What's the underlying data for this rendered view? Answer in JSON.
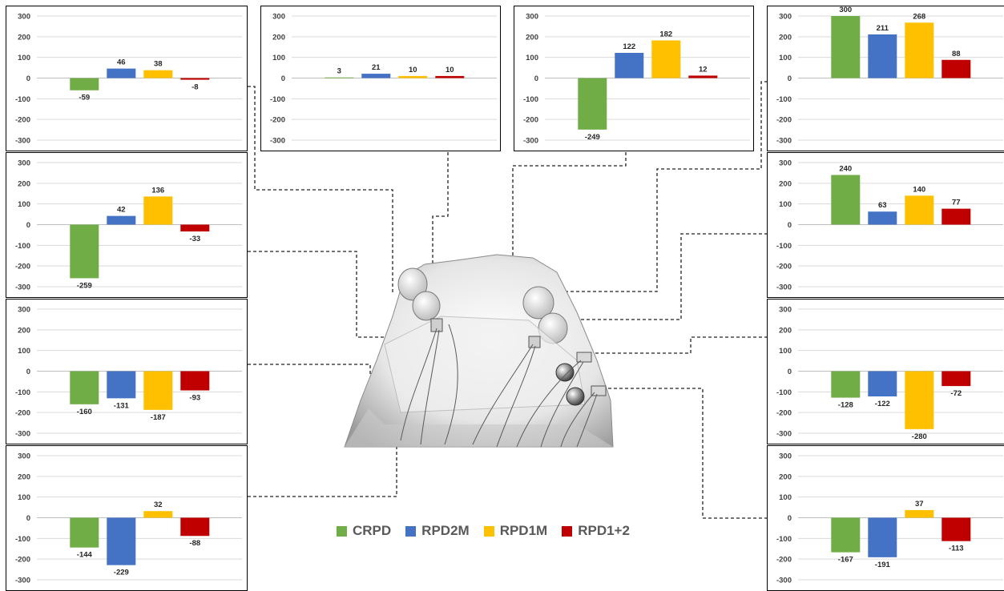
{
  "colors": {
    "CRPD": "#70ad47",
    "RPD2M": "#4472c4",
    "RPD1M": "#ffc000",
    "RPD1+2": "#c00000"
  },
  "legend": [
    {
      "name": "CRPD",
      "color": "#70ad47"
    },
    {
      "name": "RPD2M",
      "color": "#4472c4"
    },
    {
      "name": "RPD1M",
      "color": "#ffc000"
    },
    {
      "name": "RPD1+2",
      "color": "#c00000"
    }
  ],
  "chart_data": [
    {
      "type": "bar",
      "panel": "left-1",
      "categories": [
        "CRPD",
        "RPD2M",
        "RPD1M",
        "RPD1+2"
      ],
      "values": [
        -59,
        46,
        38,
        -8
      ],
      "ylim": [
        -300,
        300
      ],
      "yticks": [
        300,
        200,
        100,
        0,
        -100,
        -200,
        -300
      ],
      "grid": true,
      "legend": "bottom-center"
    },
    {
      "type": "bar",
      "panel": "left-2",
      "categories": [
        "CRPD",
        "RPD2M",
        "RPD1M",
        "RPD1+2"
      ],
      "values": [
        -259,
        42,
        136,
        -33
      ],
      "ylim": [
        -300,
        300
      ],
      "yticks": [
        300,
        200,
        100,
        0,
        -100,
        -200,
        -300
      ],
      "grid": true
    },
    {
      "type": "bar",
      "panel": "left-3",
      "categories": [
        "CRPD",
        "RPD2M",
        "RPD1M",
        "RPD1+2"
      ],
      "values": [
        -160,
        -131,
        -187,
        -93
      ],
      "ylim": [
        -300,
        300
      ],
      "yticks": [
        300,
        200,
        100,
        0,
        -100,
        -200,
        -300
      ],
      "grid": true
    },
    {
      "type": "bar",
      "panel": "left-4",
      "categories": [
        "CRPD",
        "RPD2M",
        "RPD1M",
        "RPD1+2"
      ],
      "values": [
        -144,
        -229,
        32,
        -88
      ],
      "ylim": [
        -300,
        300
      ],
      "yticks": [
        300,
        200,
        100,
        0,
        -100,
        -200,
        -300
      ],
      "grid": true
    },
    {
      "type": "bar",
      "panel": "top-middle-left",
      "categories": [
        "CRPD",
        "RPD2M",
        "RPD1M",
        "RPD1+2"
      ],
      "values": [
        3,
        21,
        10,
        10
      ],
      "ylim": [
        -300,
        300
      ],
      "yticks": [
        300,
        200,
        100,
        0,
        -100,
        -200,
        -300
      ],
      "grid": true
    },
    {
      "type": "bar",
      "panel": "top-middle-right",
      "categories": [
        "CRPD",
        "RPD2M",
        "RPD1M",
        "RPD1+2"
      ],
      "values": [
        -249,
        122,
        182,
        12
      ],
      "ylim": [
        -300,
        300
      ],
      "yticks": [
        300,
        200,
        100,
        0,
        -100,
        -200,
        -300
      ],
      "grid": true
    },
    {
      "type": "bar",
      "panel": "right-1",
      "categories": [
        "CRPD",
        "RPD2M",
        "RPD1M",
        "RPD1+2"
      ],
      "values": [
        300,
        211,
        268,
        88
      ],
      "ylim": [
        -300,
        300
      ],
      "yticks": [
        300,
        200,
        100,
        0,
        -100,
        -200,
        -300
      ],
      "grid": true
    },
    {
      "type": "bar",
      "panel": "right-2",
      "categories": [
        "CRPD",
        "RPD2M",
        "RPD1M",
        "RPD1+2"
      ],
      "values": [
        240,
        63,
        140,
        77
      ],
      "ylim": [
        -300,
        300
      ],
      "yticks": [
        300,
        200,
        100,
        0,
        -100,
        -200,
        -300
      ],
      "grid": true
    },
    {
      "type": "bar",
      "panel": "right-3",
      "categories": [
        "CRPD",
        "RPD2M",
        "RPD1M",
        "RPD1+2"
      ],
      "values": [
        -128,
        -122,
        -280,
        -72
      ],
      "ylim": [
        -300,
        300
      ],
      "yticks": [
        300,
        200,
        100,
        0,
        -100,
        -200,
        -300
      ],
      "grid": true
    },
    {
      "type": "bar",
      "panel": "right-4",
      "categories": [
        "CRPD",
        "RPD2M",
        "RPD1M",
        "RPD1+2"
      ],
      "values": [
        -167,
        -191,
        37,
        -113
      ],
      "ylim": [
        -300,
        300
      ],
      "yticks": [
        300,
        200,
        100,
        0,
        -100,
        -200,
        -300
      ],
      "grid": true
    }
  ]
}
